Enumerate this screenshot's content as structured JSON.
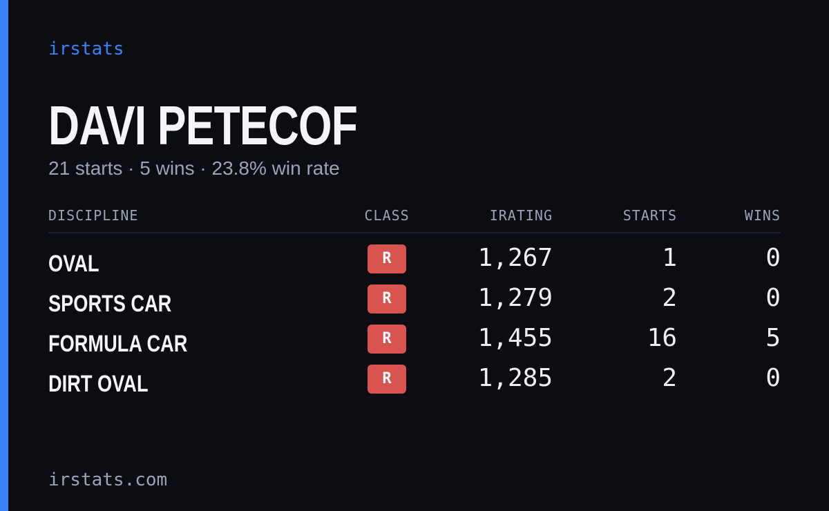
{
  "brand": "irstats",
  "driver": {
    "name": "DAVI PETECOF",
    "summary": "21 starts · 5 wins · 23.8% win rate"
  },
  "table": {
    "headers": [
      "DISCIPLINE",
      "CLASS",
      "IRATING",
      "STARTS",
      "WINS"
    ],
    "rows": [
      [
        "OVAL",
        "R",
        "1,267",
        1,
        0
      ],
      [
        "SPORTS CAR",
        "R",
        "1,279",
        2,
        0
      ],
      [
        "FORMULA CAR",
        "R",
        "1,455",
        16,
        5
      ],
      [
        "DIRT OVAL",
        "R",
        "1,285",
        2,
        0
      ]
    ]
  },
  "footer": "irstats.com"
}
